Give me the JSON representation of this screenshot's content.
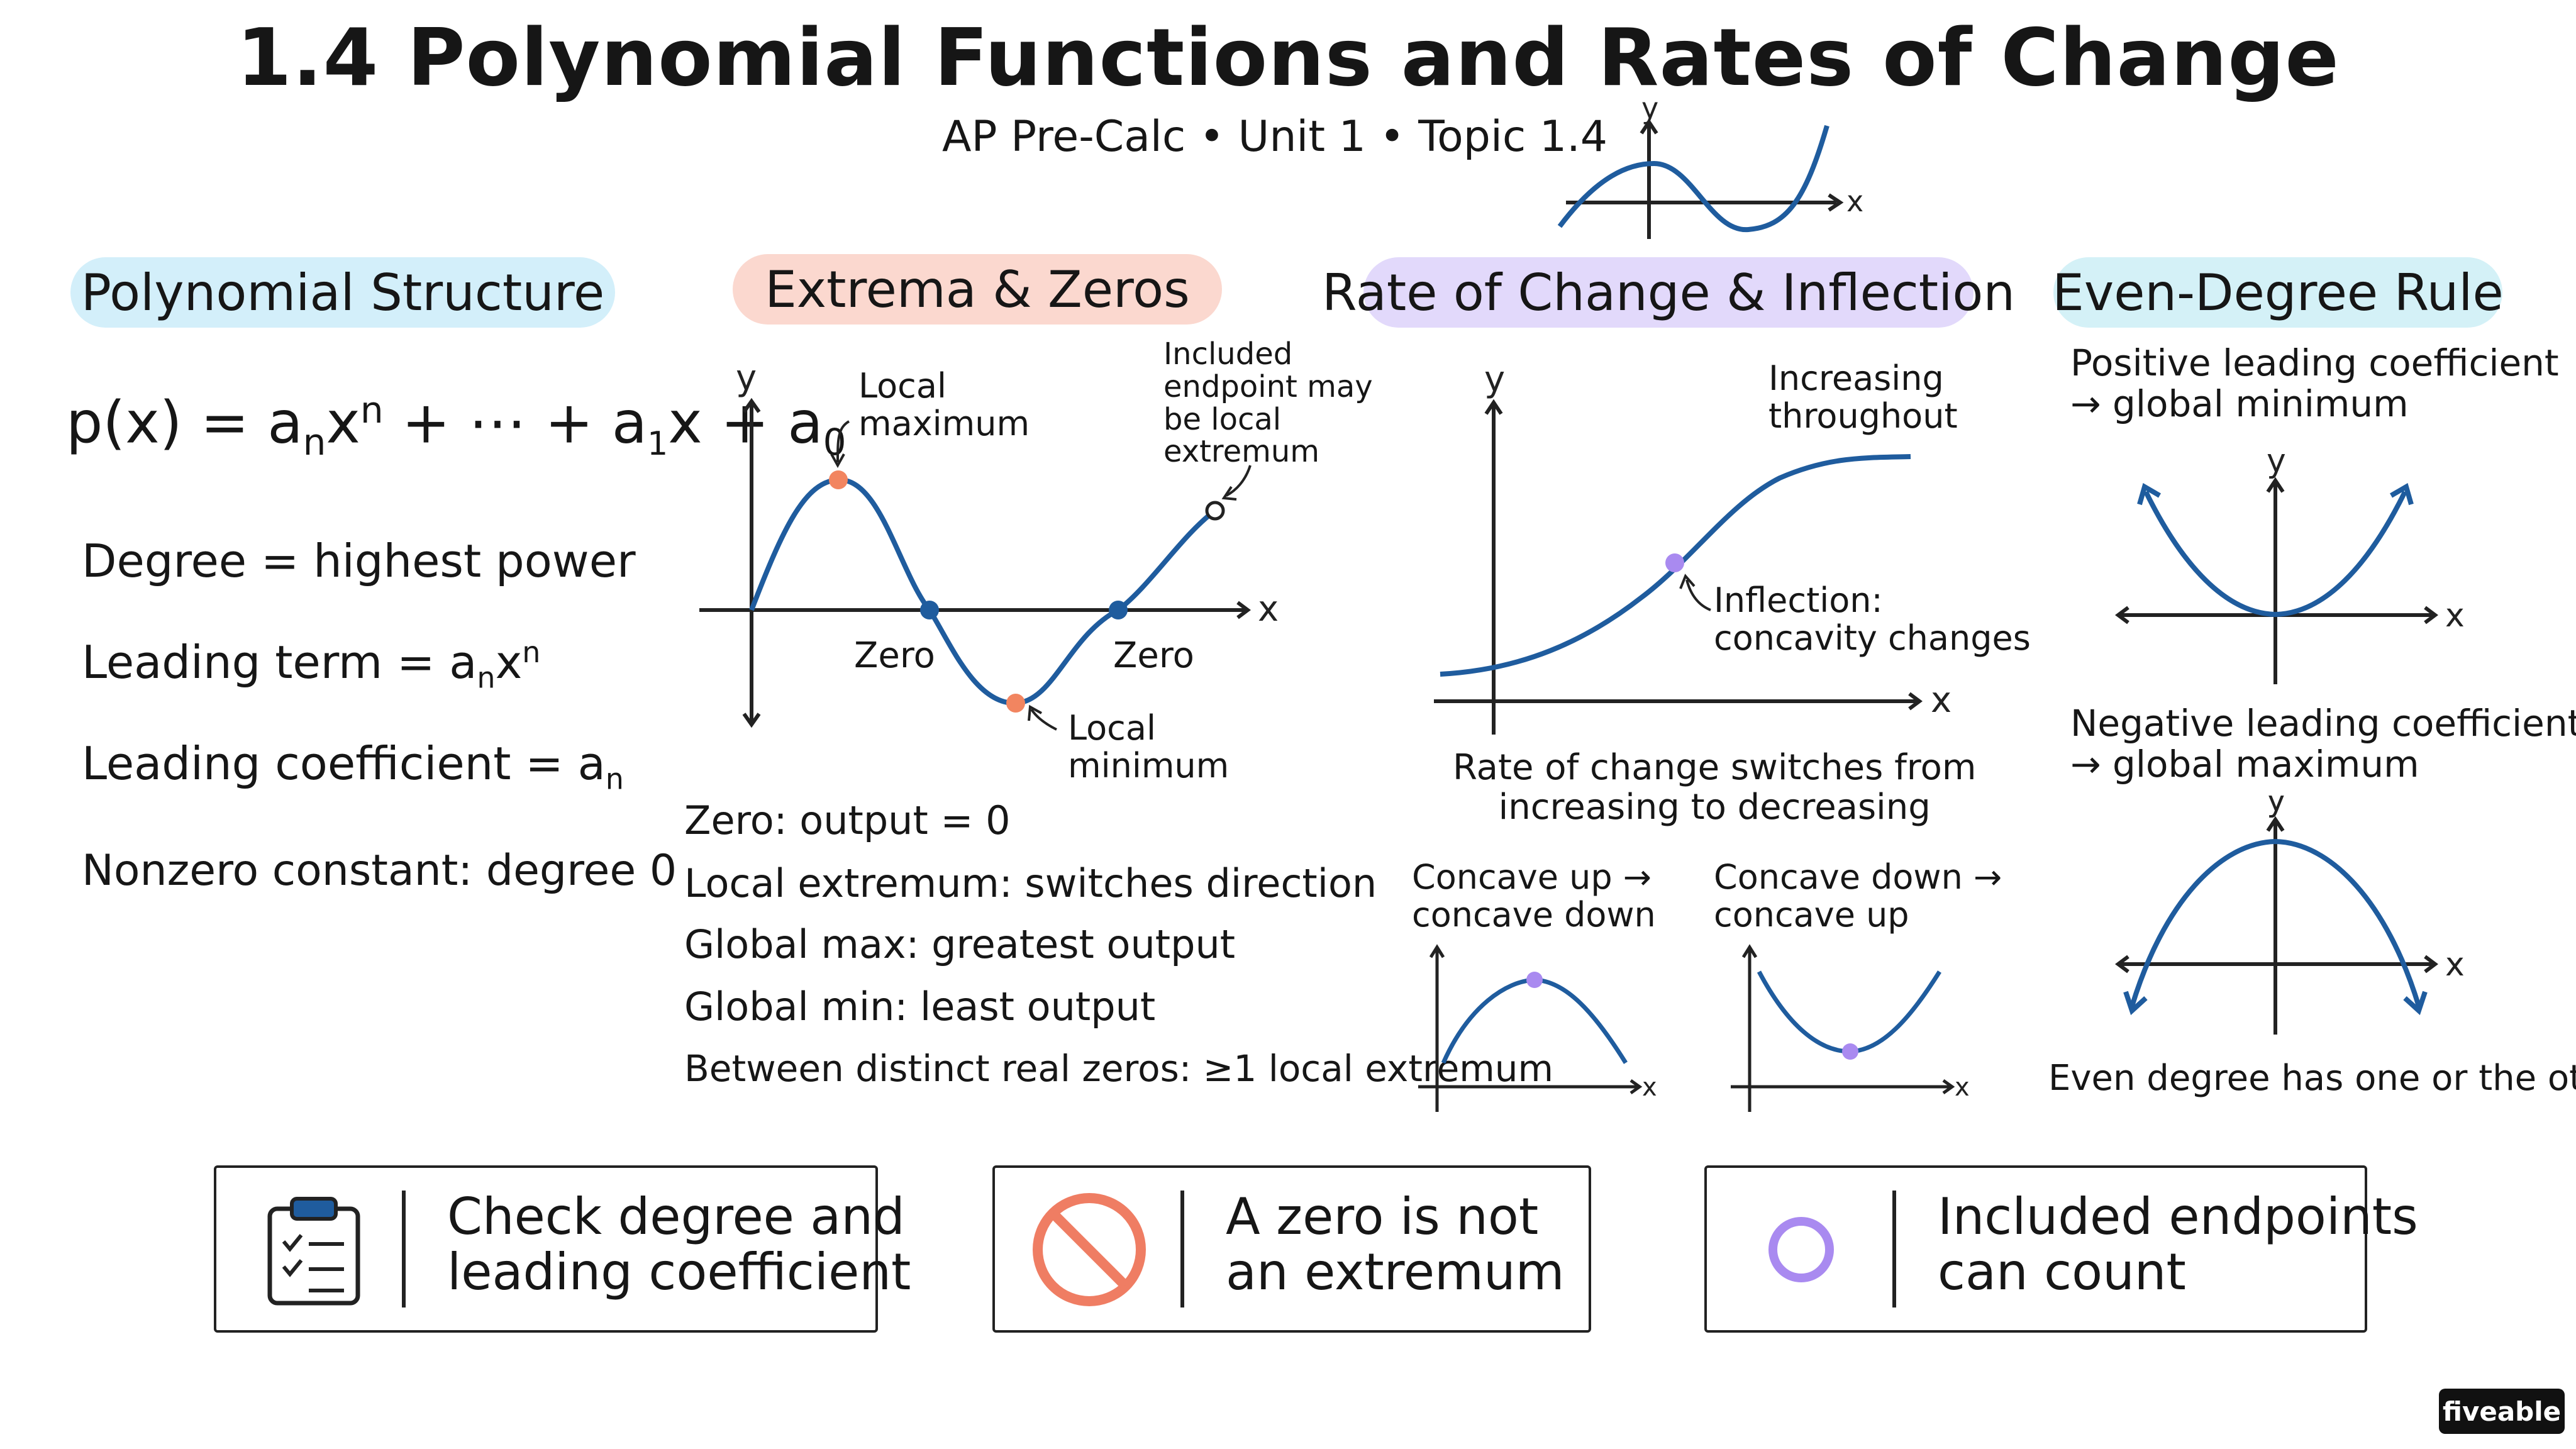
{
  "page": {
    "title": "1.4 Polynomial Functions and Rates of Change",
    "subtitle": "AP Pre-Calc • Unit 1 • Topic 1.4"
  },
  "header_graph": {
    "y_label": "y",
    "x_label": "x"
  },
  "structure": {
    "heading": "Polynomial Structure",
    "formula": {
      "lhs": "p(x) = a",
      "sub_n": "n",
      "x": "x",
      "sup_n": "n",
      "mid": " + ⋯ + a",
      "sub_1": "1",
      "x1": "x + a",
      "sub_0": "0"
    },
    "degree": "Degree = highest power",
    "leading_term": {
      "text": "Leading term = a",
      "sub": "n",
      "x": "x",
      "sup": "n"
    },
    "leading_coefficient": {
      "text": "Leading coefficient = a",
      "sub": "n"
    },
    "constant": "Nonzero constant: degree 0"
  },
  "extrema": {
    "heading": "Extrema & Zeros",
    "graph": {
      "y_label": "y",
      "x_label": "x",
      "local_max": "Local\nmaximum",
      "included": "Included\nendpoint may\nbe local\nextremum",
      "zero1": "Zero",
      "zero2": "Zero",
      "local_min": "Local\nminimum"
    },
    "facts": [
      "Zero: output = 0",
      "Local extremum: switches direction",
      "Global max: greatest output",
      "Global min: least output",
      "Between distinct real zeros: ≥1 local extremum"
    ]
  },
  "rate": {
    "heading": "Rate of Change & Inflection",
    "graph": {
      "y_label": "y",
      "x_label": "x",
      "increasing": "Increasing\nthroughout",
      "inflection": "Inflection:\nconcavity changes"
    },
    "caption": "Rate of change switches from\nincreasing to decreasing",
    "mini1": {
      "label": "Concave up →\nconcave down",
      "x_label": "x"
    },
    "mini2": {
      "label": "Concave down →\nconcave up",
      "x_label": "x"
    }
  },
  "even": {
    "heading": "Even-Degree Rule",
    "positive": "Positive leading coefficient\n→ global minimum",
    "negative": "Negative leading coefficient\n→ global maximum",
    "y_label": "y",
    "x_label": "x",
    "footer": "Even degree has one or the other"
  },
  "tips": [
    {
      "icon": "clipboard-icon",
      "text": "Check degree and\nleading coefficient"
    },
    {
      "icon": "prohibited-icon",
      "text": "A zero is not\nan extremum"
    },
    {
      "icon": "circle-icon",
      "text": "Included endpoints\ncan count"
    }
  ],
  "brand": "fiveable",
  "colors": {
    "curve": "#1f5c9e",
    "axis": "#222222",
    "extremum_dot": "#f28560",
    "zero_dot": "#1f5c9e",
    "inflection_dot": "#a98af0",
    "pill_blue": "#d3effa",
    "pill_peach": "#fbd8cf",
    "pill_purple": "#e2d9fb",
    "pill_teal": "#d4f1f7",
    "prohibited": "#ef7d63",
    "circle": "#a98af0"
  }
}
